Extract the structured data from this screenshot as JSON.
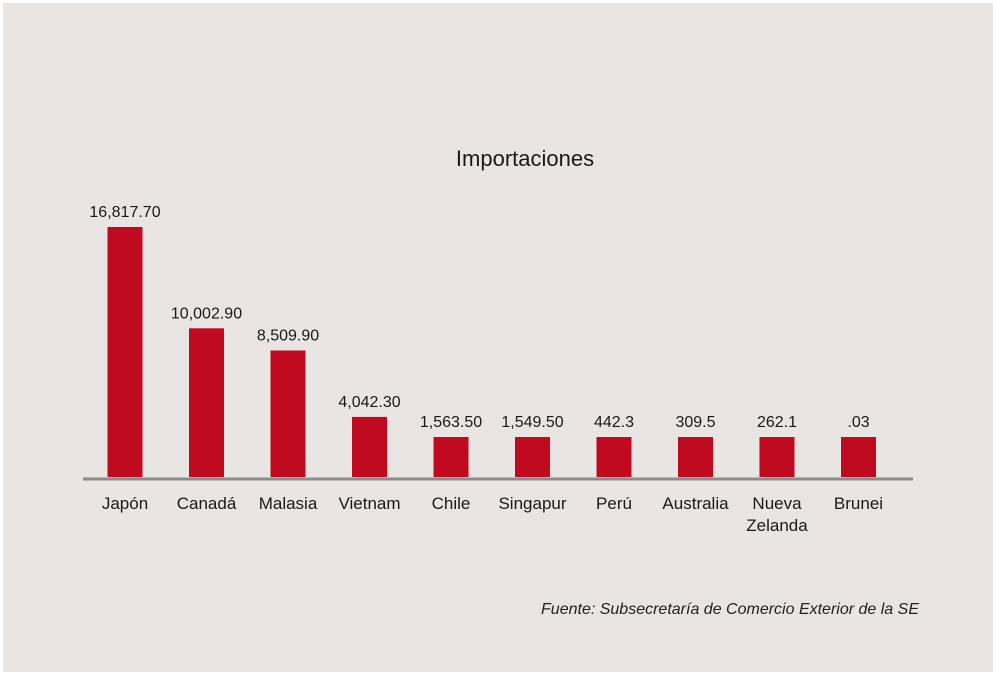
{
  "chart_data": {
    "type": "bar",
    "title": "Importaciones",
    "categories": [
      [
        "Japón"
      ],
      [
        "Canadá"
      ],
      [
        "Malasia"
      ],
      [
        "Vietnam"
      ],
      [
        "Chile"
      ],
      [
        "Singapur"
      ],
      [
        "Perú"
      ],
      [
        "Australia"
      ],
      [
        "Nueva",
        "Zelanda"
      ],
      [
        "Brunei"
      ]
    ],
    "values": [
      16817.7,
      10002.9,
      8509.9,
      4042.3,
      1563.5,
      1549.5,
      442.3,
      309.5,
      262.1,
      0.03
    ],
    "value_labels": [
      "16,817.70",
      "10,002.90",
      "8,509.90",
      "4,042.30",
      "1,563.50",
      "1,549.50",
      "442.3",
      "309.5",
      "262.1",
      ".03"
    ],
    "xlabel": "",
    "ylabel": "",
    "grid": false,
    "legend": "none",
    "colors": {
      "bar": "#c00a1f",
      "axis": "#8c8c8c",
      "text": "#1a1a1a",
      "background": "#e8e5e3"
    }
  },
  "source": "Fuente: Subsecretaría de Comercio Exterior de la SE"
}
